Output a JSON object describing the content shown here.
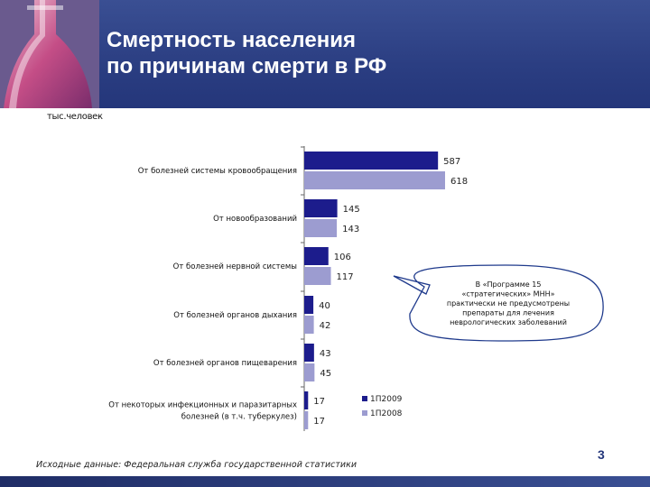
{
  "header": {
    "title_line1": "Смертность населения",
    "title_line2": "по причинам смерти в РФ",
    "bg_color": "#2b3e82"
  },
  "unit_label": "тыс.человек",
  "chart_data": {
    "type": "bar",
    "orientation": "horizontal",
    "categories": [
      [
        "От болезней системы кровообращения"
      ],
      [
        "От новообразований"
      ],
      [
        "От болезней нервной системы"
      ],
      [
        "От болезней органов дыхания"
      ],
      [
        "От болезней органов пищеварения"
      ],
      [
        "От некоторых инфекционных и паразитарных",
        "болезней (в т.ч. туберкулез)"
      ]
    ],
    "series": [
      {
        "name": "1П2009",
        "values": [
          587,
          145,
          106,
          40,
          43,
          17
        ],
        "color": "#1c1c8c"
      },
      {
        "name": "1П2008",
        "values": [
          618,
          143,
          117,
          42,
          45,
          17
        ],
        "color": "#9c9cd0"
      }
    ],
    "xlim": [
      0,
      618
    ],
    "legend_position": "bottom-right",
    "grid": false
  },
  "callout": {
    "lines": [
      "В «Программе 15",
      "«стратегических» МНН»",
      "практически не предусмотрены",
      "препараты для лечения",
      "неврологических заболеваний"
    ]
  },
  "source_note": "Исходные данные: Федеральная служба государственной статистики",
  "page_number": "3"
}
